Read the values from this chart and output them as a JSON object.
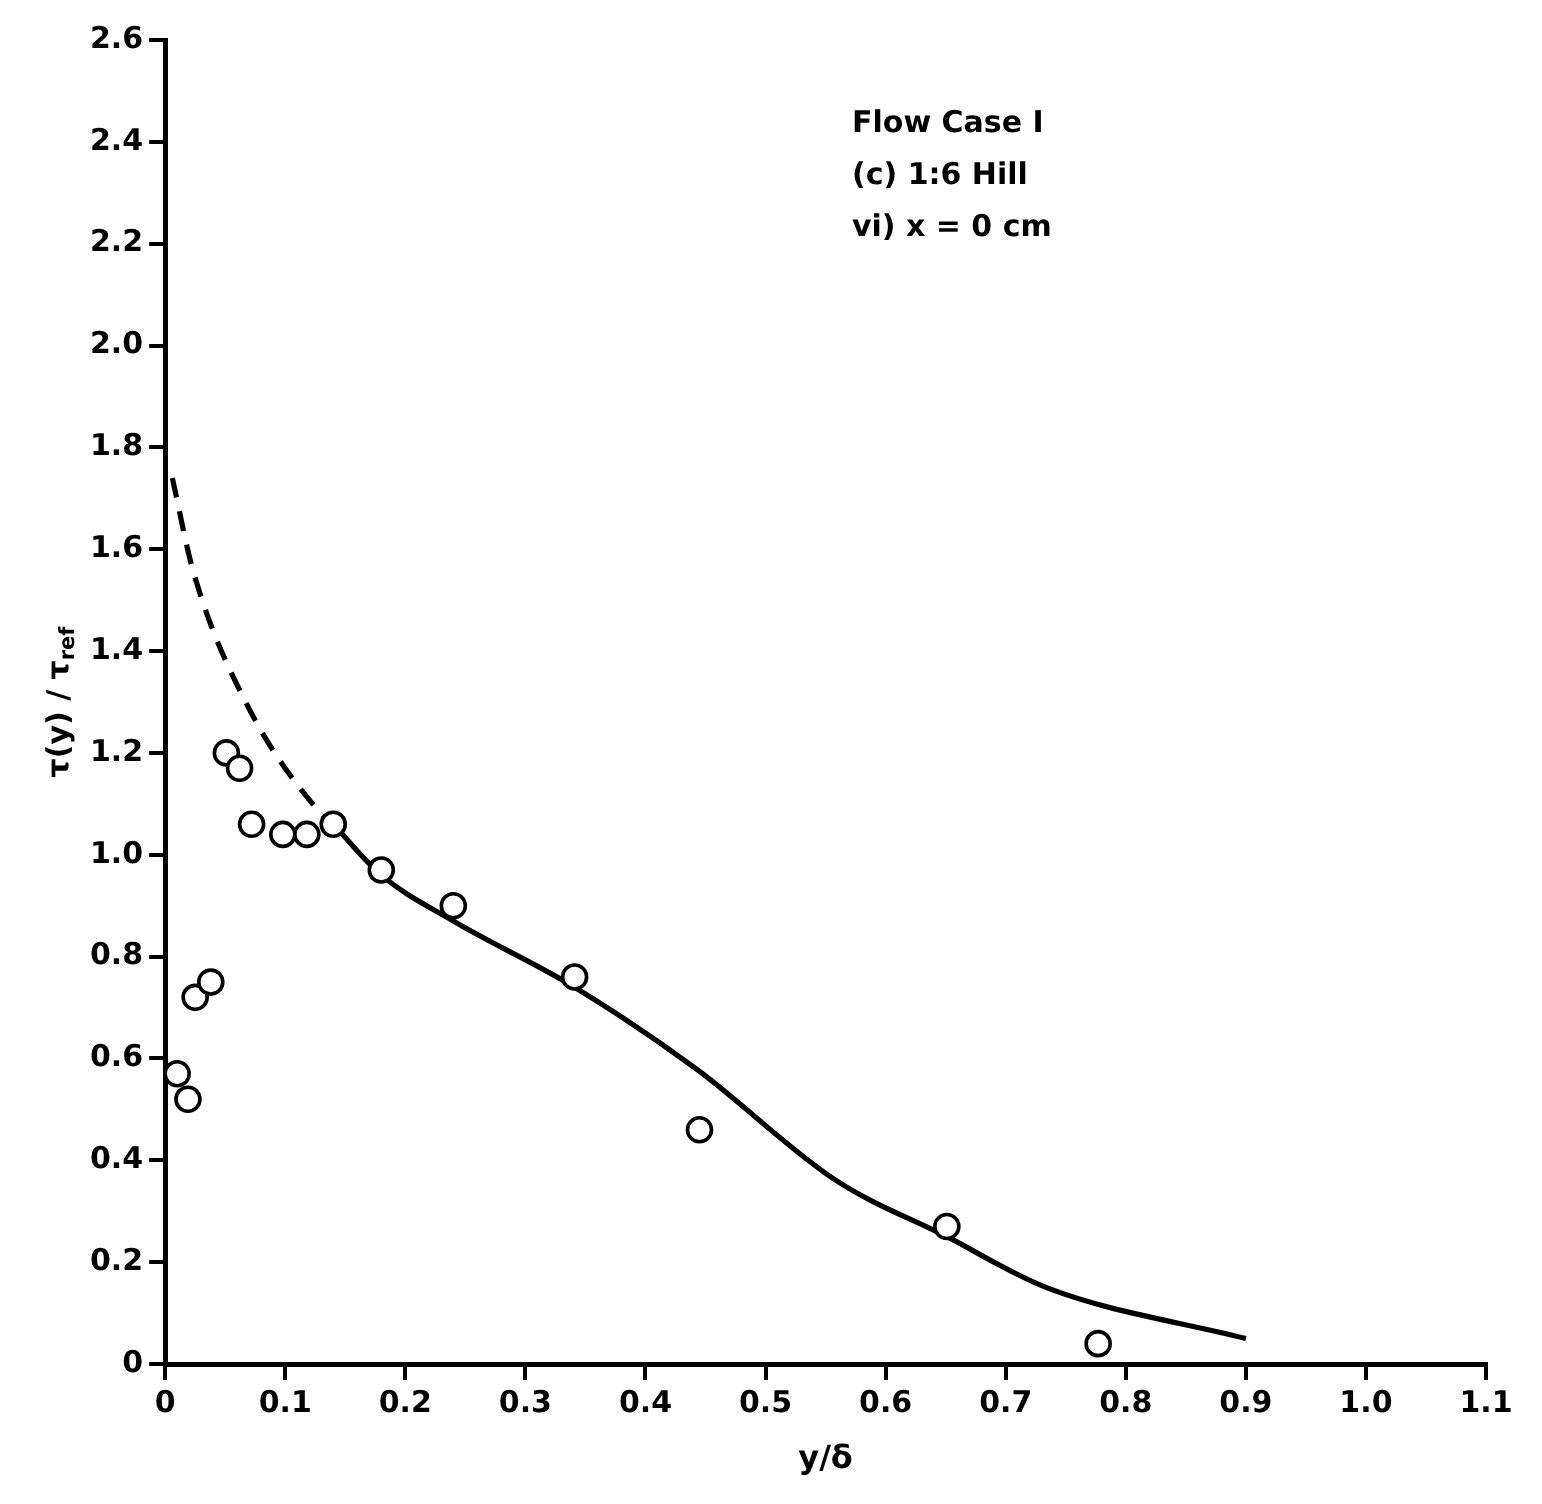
{
  "chart_data": {
    "type": "scatter",
    "xlabel": "y/δ",
    "ylabel": "τ(y) / τ$_{ref}$",
    "annotations": [
      "Flow Case I",
      "(c) 1:6 Hill",
      "vi) x = 0 cm"
    ],
    "series": [
      {
        "color": "#000000",
        "marker": "circle",
        "x": [
          0.01,
          0.019,
          0.025,
          0.038,
          0.051,
          0.062,
          0.072,
          0.098,
          0.118,
          0.14,
          0.18,
          0.24,
          0.341,
          0.445,
          0.651,
          0.777
        ],
        "values": [
          0.57,
          0.52,
          0.72,
          0.75,
          1.2,
          1.17,
          1.06,
          1.04,
          1.04,
          1.06,
          0.97,
          0.9,
          0.76,
          0.46,
          0.27,
          0.04
        ]
      },
      {
        "type": "line",
        "color": "#000000",
        "marker": "none",
        "line_style": "solid",
        "x": [
          0.14,
          0.18,
          0.24,
          0.341,
          0.442,
          0.559,
          0.651,
          0.734,
          0.9
        ],
        "values": [
          1.06,
          0.96,
          0.87,
          0.74,
          0.58,
          0.36,
          0.25,
          0.15,
          0.05
        ]
      },
      {
        "type": "line",
        "color": "#000000",
        "marker": "none",
        "line_style": "dashed",
        "x": [
          0.006,
          0.023,
          0.067,
          0.13,
          0.14
        ],
        "values": [
          1.74,
          1.56,
          1.3,
          1.08,
          1.06
        ]
      }
    ],
    "xlim": [
      0,
      1.1
    ],
    "xticks": [
      0,
      0.1,
      0.2,
      0.3,
      0.4,
      0.5,
      0.6,
      0.7,
      0.8,
      0.9,
      {
        "value": 1,
        "label": "1.0"
      },
      1.1
    ],
    "ylim": [
      0,
      2.6
    ],
    "yticks": [
      0,
      0.2,
      0.4,
      0.6,
      0.8,
      {
        "value": 1,
        "label": "1.0"
      },
      1.2,
      1.4,
      1.6,
      1.8,
      {
        "value": 2,
        "label": "2.0"
      },
      2.2,
      2.4,
      2.6
    ],
    "grid": false,
    "legend": false
  }
}
